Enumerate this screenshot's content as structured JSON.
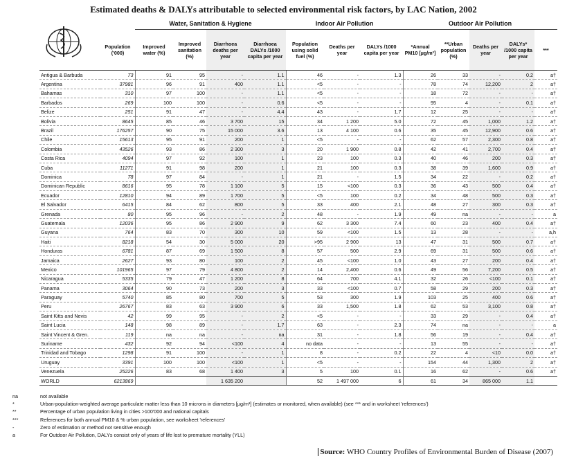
{
  "title": "Estimated deaths & DALYs attributable to selected environmental risk factors, by LAC Nation, 2002",
  "table": {
    "groups": [
      "Water, Sanitation & Hygiene",
      "Indoor Air Pollution",
      "Outdoor Air Pollution"
    ],
    "headers": [
      "Population ('000)",
      "Improved water (%)",
      "Improved sanitation (%)",
      "Diarrhoea deaths per year",
      "Diarrhoea DALYs /1000 capita per year",
      "Population using solid fuel (%)",
      "Deaths per year",
      "DALYs /1000 capita per year",
      "*Annual PM10 [µg/m³]",
      "**Urban population (%)",
      "Deaths per year",
      "DALYs* /1000 capita per year",
      "***"
    ],
    "rows": [
      [
        "Antigua & Barbuda",
        73,
        91,
        95,
        "-",
        1.1,
        46,
        "-",
        1.3,
        26,
        33,
        "-",
        0.2,
        "a†"
      ],
      [
        "Argentina",
        37981,
        96,
        91,
        400,
        1.1,
        "<5",
        "-",
        "-",
        78,
        74,
        "12,200",
        2,
        "a†"
      ],
      [
        "Bahamas",
        310,
        97,
        100,
        "-",
        1.1,
        "<5",
        "-",
        "-",
        18,
        72,
        "-",
        "-",
        "a†"
      ],
      [
        "Barbados",
        269,
        100,
        100,
        "-",
        0.6,
        "<5",
        "-",
        "-",
        95,
        4,
        "-",
        0.1,
        "a†"
      ],
      [
        "Belize",
        251,
        91,
        47,
        "-",
        4.4,
        43,
        "-",
        1.7,
        12,
        25,
        "-",
        "-",
        "a†"
      ],
      [
        "Bolivia",
        8645,
        85,
        46,
        "3 700",
        15,
        34,
        "1 200",
        "5.0",
        72,
        45,
        "1,000",
        1.2,
        "a†"
      ],
      [
        "Brazil",
        176257,
        90,
        75,
        "15 000",
        3.6,
        13,
        "4 100",
        0.6,
        35,
        45,
        "12,900",
        0.6,
        "a†"
      ],
      [
        "Chile",
        15613,
        95,
        91,
        200,
        1,
        "<5",
        "-",
        "-",
        62,
        57,
        "2,300",
        0.8,
        "a†"
      ],
      [
        "Colombia",
        43526,
        93,
        86,
        "2 300",
        3,
        20,
        "1 900",
        0.8,
        42,
        41,
        "2,700",
        0.4,
        "a†"
      ],
      [
        "Costa Rica",
        4094,
        97,
        92,
        100,
        1,
        23,
        100,
        0.3,
        40,
        46,
        200,
        0.3,
        "a†"
      ],
      [
        "Cuba",
        11271,
        91,
        98,
        200,
        1,
        21,
        100,
        0.3,
        38,
        39,
        "1,600",
        0.9,
        "a†"
      ],
      [
        "Dominica",
        78,
        97,
        84,
        "-",
        1,
        21,
        "-",
        1.5,
        34,
        22,
        "-",
        0.2,
        "a†"
      ],
      [
        "Dominican Republic",
        8616,
        95,
        78,
        "1 100",
        5,
        15,
        "<100",
        0.3,
        36,
        43,
        500,
        0.4,
        "a†"
      ],
      [
        "Ecuador",
        12810,
        94,
        89,
        "1 700",
        5,
        "<5",
        100,
        0.2,
        34,
        48,
        500,
        0.3,
        "a†"
      ],
      [
        "El Salvador",
        6415,
        84,
        62,
        800,
        5,
        33,
        400,
        2.1,
        48,
        27,
        300,
        0.3,
        "a†"
      ],
      [
        "Grenada",
        80,
        95,
        96,
        "-",
        2,
        48,
        "-",
        1.9,
        49,
        "na",
        "-",
        "-",
        "a"
      ],
      [
        "Guatemala",
        12036,
        95,
        86,
        "2 900",
        9,
        62,
        "3 300",
        7.4,
        60,
        23,
        400,
        0.4,
        "a†"
      ],
      [
        "Guyana",
        764,
        83,
        70,
        300,
        10,
        59,
        "<100",
        1.5,
        13,
        28,
        "-",
        "-",
        "a,h"
      ],
      [
        "Haiti",
        8218,
        54,
        30,
        "5 000",
        20,
        ">95",
        "2 900",
        13,
        47,
        31,
        500,
        0.7,
        "a†"
      ],
      [
        "Honduras",
        6781,
        87,
        69,
        "1 500",
        8,
        57,
        500,
        2.9,
        69,
        31,
        500,
        0.6,
        "a†"
      ],
      [
        "Jamaica",
        2627,
        93,
        80,
        100,
        2,
        45,
        "<100",
        "1.0",
        43,
        27,
        200,
        0.4,
        "a†"
      ],
      [
        "Mexico",
        101965,
        97,
        79,
        "4 800",
        2,
        14,
        "2,400",
        0.6,
        49,
        56,
        "7,200",
        0.5,
        "a†"
      ],
      [
        "Nicaragua",
        5335,
        79,
        47,
        "1 200",
        8,
        64,
        700,
        4.1,
        32,
        26,
        "<100",
        0.1,
        "a†"
      ],
      [
        "Panama",
        3064,
        90,
        73,
        200,
        3,
        33,
        "<100",
        0.7,
        58,
        29,
        200,
        0.3,
        "a†"
      ],
      [
        "Paraguay",
        5740,
        85,
        80,
        700,
        5,
        53,
        300,
        1.9,
        103,
        25,
        400,
        0.6,
        "a†"
      ],
      [
        "Peru",
        26767,
        83,
        63,
        "3 900",
        6,
        33,
        "1,500",
        1.8,
        62,
        53,
        "3,100",
        0.8,
        "a†"
      ],
      [
        "Saint Kitts and Nevis",
        42,
        99,
        95,
        "-",
        2,
        "<5",
        "-",
        "-",
        33,
        29,
        "-",
        0.4,
        "a†"
      ],
      [
        "Saint Lucia",
        148,
        98,
        89,
        "-",
        1.7,
        63,
        "-",
        2.3,
        74,
        "na",
        "-",
        "-",
        "a"
      ],
      [
        "Saint Vincent & Gren.",
        119,
        "na",
        "na",
        "-",
        "na",
        31,
        "-",
        1.8,
        56,
        19,
        "-",
        0.4,
        "a†"
      ],
      [
        "Suriname",
        432,
        92,
        94,
        "<100",
        4,
        "no data",
        "-",
        "-",
        13,
        55,
        "-",
        "-",
        "a†"
      ],
      [
        "Trinidad and Tobago",
        1298,
        91,
        100,
        "-",
        1,
        8,
        "-",
        0.2,
        22,
        4,
        "<10",
        "0.0",
        "a†"
      ],
      [
        "Uruguay",
        3391,
        100,
        100,
        "<100",
        1,
        "<5",
        "-",
        "-",
        154,
        44,
        "1,300",
        2,
        "a†"
      ],
      [
        "Venezuela",
        25226,
        83,
        68,
        "1 400",
        3,
        5,
        100,
        0.1,
        16,
        62,
        "-",
        0.6,
        "a†"
      ],
      [
        "WORLD",
        6213869,
        null,
        null,
        "1 635 200",
        null,
        52,
        "1 497 000",
        6,
        61,
        34,
        "865 000",
        1.1,
        null
      ]
    ]
  },
  "footnotes": [
    {
      "symbol": "na",
      "text": "not available"
    },
    {
      "symbol": "*",
      "text": "Urban-population-weighted average particulate matter less than 10 microns in diameters [µg/m³] (estimates or monitored, when available) (see *** and in worksheet 'references')"
    },
    {
      "symbol": "**",
      "text": "Percentage of urban population living in cities >100'000 and national capitals"
    },
    {
      "symbol": "***",
      "text": "References for both annual PM10 & % urban population, see worksheet 'references'"
    },
    {
      "symbol": "-",
      "text": "Zero of estimation or method not sensitive enough"
    },
    {
      "symbol": "a",
      "text": "For Outdoor Air Pollution, DALYs consist only of years of life lost to premature mortality (YLL)"
    }
  ],
  "source": {
    "label": "Source:",
    "text": "WHO Country Profiles of Environmental Burden of Disease (2007)"
  }
}
